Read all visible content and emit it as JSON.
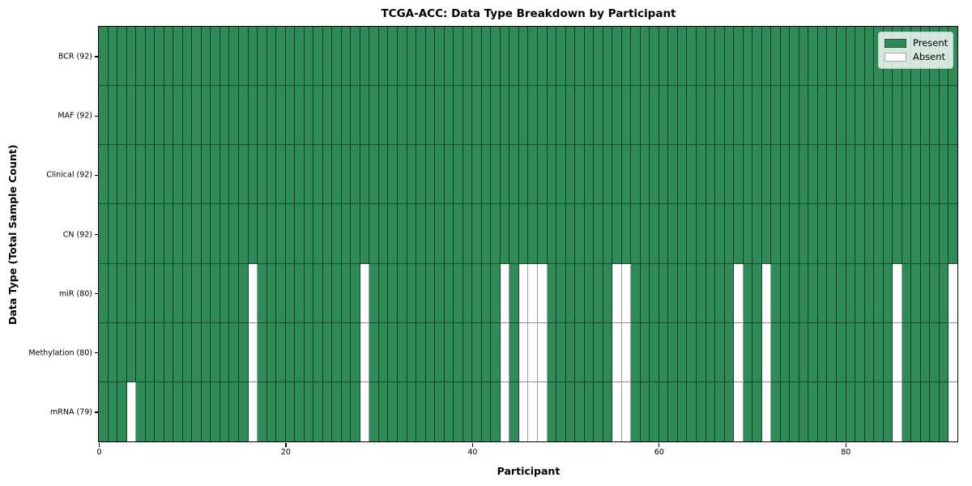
{
  "chart_data": {
    "type": "heatmap",
    "title": "TCGA-ACC: Data Type Breakdown by Participant",
    "xlabel": "Participant",
    "ylabel": "Data Type (Total Sample Count)",
    "n_participants": 92,
    "x_range": [
      0,
      92
    ],
    "x_ticks": [
      0,
      20,
      40,
      60,
      80
    ],
    "grid": false,
    "legend_position": "upper right",
    "colors": {
      "present": "#2e8b57",
      "absent": "#ffffff"
    },
    "legend": [
      {
        "label": "Present",
        "color": "#2e8b57"
      },
      {
        "label": "Absent",
        "color": "#ffffff"
      }
    ],
    "rows": [
      {
        "label": "BCR (92)",
        "data_type": "BCR",
        "present_count": 92,
        "absent_participants": []
      },
      {
        "label": "MAF (92)",
        "data_type": "MAF",
        "present_count": 92,
        "absent_participants": []
      },
      {
        "label": "Clinical (92)",
        "data_type": "Clinical",
        "present_count": 92,
        "absent_participants": []
      },
      {
        "label": "CN (92)",
        "data_type": "CN",
        "present_count": 92,
        "absent_participants": []
      },
      {
        "label": "miR (80)",
        "data_type": "miR",
        "present_count": 80,
        "absent_participants": [
          16,
          28,
          43,
          45,
          46,
          47,
          55,
          56,
          68,
          71,
          85,
          91
        ]
      },
      {
        "label": "Methylation (80)",
        "data_type": "Methylation",
        "present_count": 80,
        "absent_participants": [
          16,
          28,
          43,
          45,
          46,
          47,
          55,
          56,
          68,
          71,
          85,
          91
        ]
      },
      {
        "label": "mRNA (79)",
        "data_type": "mRNA",
        "present_count": 79,
        "absent_participants": [
          3,
          16,
          28,
          43,
          45,
          46,
          47,
          55,
          56,
          68,
          71,
          85,
          91
        ]
      }
    ]
  }
}
